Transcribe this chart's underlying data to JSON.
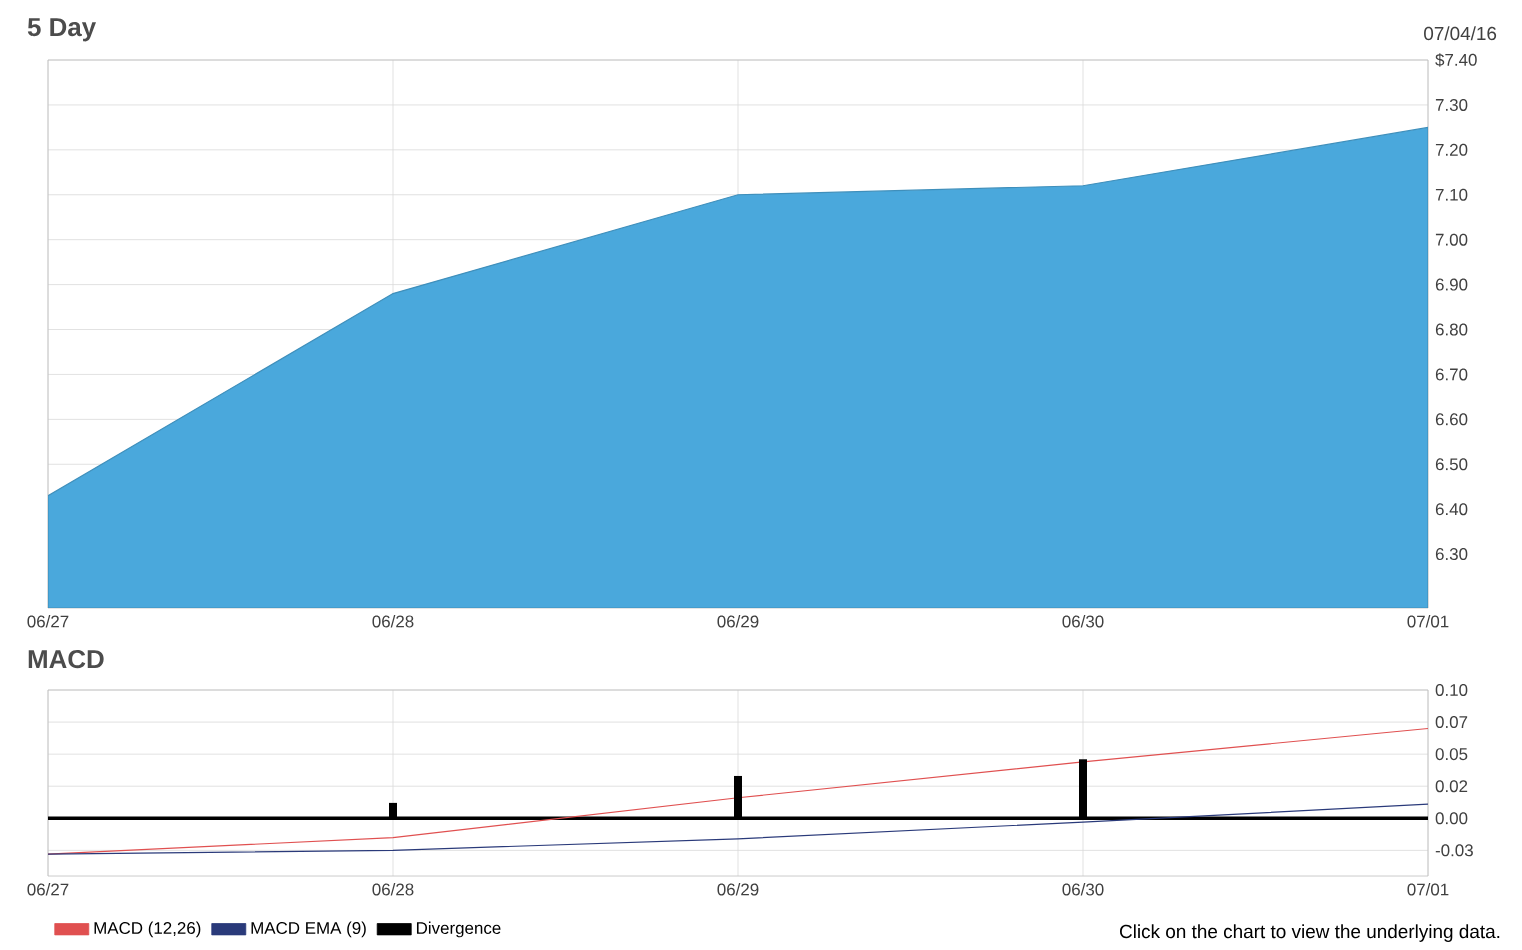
{
  "chart_data": [
    {
      "type": "area",
      "title": "5 Day",
      "categories": [
        "06/27",
        "06/28",
        "06/29",
        "06/30",
        "07/01"
      ],
      "values": [
        6.43,
        6.88,
        7.1,
        7.12,
        7.25
      ],
      "color": "#4aa8dc",
      "ylim": [
        6.18,
        7.4
      ],
      "grid": true,
      "yticks": [
        {
          "value": 7.4,
          "label": "$7.40"
        },
        {
          "value": 7.3,
          "label": "7.30"
        },
        {
          "value": 7.2,
          "label": "7.20"
        },
        {
          "value": 7.1,
          "label": "7.10"
        },
        {
          "value": 7.0,
          "label": "7.00"
        },
        {
          "value": 6.9,
          "label": "6.90"
        },
        {
          "value": 6.8,
          "label": "6.80"
        },
        {
          "value": 6.7,
          "label": "6.70"
        },
        {
          "value": 6.6,
          "label": "6.60"
        },
        {
          "value": 6.5,
          "label": "6.50"
        },
        {
          "value": 6.4,
          "label": "6.40"
        },
        {
          "value": 6.3,
          "label": "6.30"
        }
      ],
      "annotations": [
        "07/04/16"
      ]
    },
    {
      "type": "line",
      "title": "MACD",
      "categories": [
        "06/27",
        "06/28",
        "06/29",
        "06/30",
        "07/01"
      ],
      "ylim": [
        -0.045,
        0.1
      ],
      "grid": true,
      "legend": "bottom left",
      "yticks": [
        {
          "value": 0.1,
          "label": "0.10"
        },
        {
          "value": 0.075,
          "label": "0.07"
        },
        {
          "value": 0.05,
          "label": "0.05"
        },
        {
          "value": 0.025,
          "label": "0.02"
        },
        {
          "value": 0.0,
          "label": "0.00"
        },
        {
          "value": -0.025,
          "label": "-0.03"
        }
      ],
      "series": [
        {
          "name": "MACD (12,26)",
          "color": "#e05050",
          "values": [
            -0.028,
            -0.015,
            0.016,
            0.044,
            0.07
          ]
        },
        {
          "name": "MACD EMA (9)",
          "color": "#2a3a7a",
          "values": [
            -0.028,
            -0.025,
            -0.016,
            -0.003,
            0.011
          ]
        },
        {
          "name": "Divergence",
          "type": "bar",
          "color": "#000000",
          "values": [
            null,
            0.012,
            0.033,
            0.046,
            null
          ]
        }
      ],
      "ref_lines": [
        {
          "axis": "y",
          "value": 0,
          "color": "#000000"
        }
      ],
      "annotations": [
        "Click on the chart to view the underlying data."
      ]
    }
  ]
}
